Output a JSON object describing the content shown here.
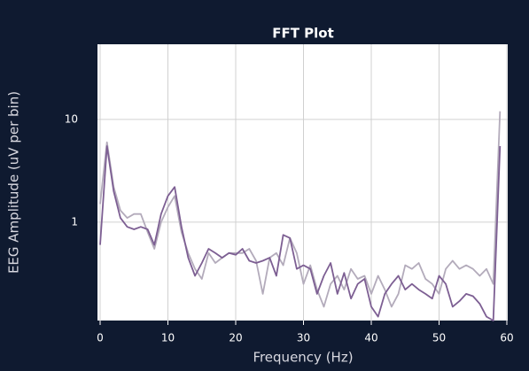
{
  "chart_data": {
    "type": "line",
    "title": "FFT Plot",
    "x_label": "Frequency (Hz)",
    "y_label": "EEG Amplitude (uV per bin)",
    "x": [
      0,
      1,
      2,
      3,
      4,
      5,
      6,
      7,
      8,
      9,
      10,
      11,
      12,
      13,
      14,
      15,
      16,
      17,
      18,
      19,
      20,
      21,
      22,
      23,
      24,
      25,
      26,
      27,
      28,
      29,
      30,
      31,
      32,
      33,
      34,
      35,
      36,
      37,
      38,
      39,
      40,
      41,
      42,
      43,
      44,
      45,
      46,
      47,
      48,
      49,
      50,
      51,
      52,
      53,
      54,
      55,
      56,
      57,
      58,
      59
    ],
    "series": [
      {
        "color": "#b3abbb",
        "values": [
          1.5,
          6.0,
          2.2,
          1.3,
          1.1,
          1.2,
          1.2,
          0.8,
          0.55,
          1.0,
          1.4,
          1.8,
          0.8,
          0.5,
          0.35,
          0.28,
          0.5,
          0.4,
          0.45,
          0.5,
          0.5,
          0.5,
          0.55,
          0.42,
          0.2,
          0.45,
          0.5,
          0.38,
          0.7,
          0.5,
          0.25,
          0.38,
          0.22,
          0.15,
          0.25,
          0.3,
          0.22,
          0.35,
          0.28,
          0.3,
          0.2,
          0.3,
          0.22,
          0.15,
          0.2,
          0.38,
          0.35,
          0.4,
          0.28,
          0.25,
          0.2,
          0.35,
          0.42,
          0.35,
          0.38,
          0.35,
          0.3,
          0.35,
          0.25,
          12
        ]
      },
      {
        "color": "#7d5f93",
        "values": [
          0.6,
          5.5,
          2.0,
          1.1,
          0.9,
          0.85,
          0.9,
          0.85,
          0.6,
          1.2,
          1.8,
          2.2,
          0.9,
          0.45,
          0.3,
          0.4,
          0.55,
          0.5,
          0.45,
          0.5,
          0.48,
          0.55,
          0.42,
          0.4,
          0.42,
          0.45,
          0.3,
          0.75,
          0.7,
          0.35,
          0.38,
          0.35,
          0.2,
          0.3,
          0.4,
          0.2,
          0.32,
          0.18,
          0.25,
          0.28,
          0.15,
          0.12,
          0.2,
          0.25,
          0.3,
          0.22,
          0.25,
          0.22,
          0.2,
          0.18,
          0.3,
          0.25,
          0.15,
          0.17,
          0.2,
          0.19,
          0.16,
          0.12,
          0.11,
          5.5
        ]
      }
    ],
    "xlim": [
      0,
      60
    ],
    "xticks": [
      0,
      10,
      20,
      30,
      40,
      50,
      60
    ],
    "ylim": [
      0.11,
      54
    ],
    "yticks": [
      1,
      10
    ],
    "ylog": true,
    "grid": true
  }
}
